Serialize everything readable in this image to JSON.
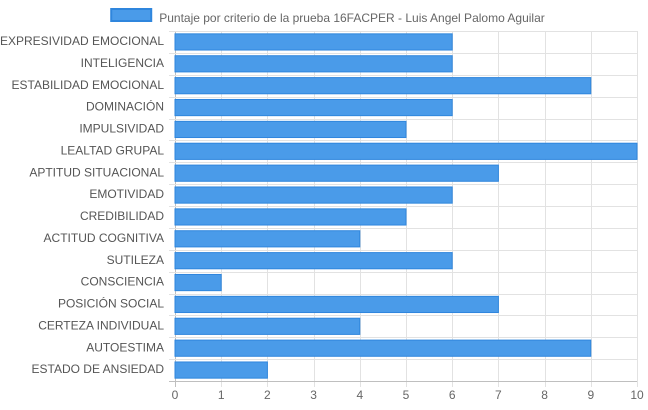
{
  "chart_data": {
    "type": "bar",
    "orientation": "horizontal",
    "title": "",
    "xlabel": "",
    "ylabel": "",
    "legend_position": "top",
    "grid": true,
    "xlim": [
      0,
      10
    ],
    "x_ticks": [
      0,
      1,
      2,
      3,
      4,
      5,
      6,
      7,
      8,
      9,
      10
    ],
    "categories": [
      "EXPRESIVIDAD EMOCIONAL",
      "INTELIGENCIA",
      "ESTABILIDAD EMOCIONAL",
      "DOMINACIÓN",
      "IMPULSIVIDAD",
      "LEALTAD GRUPAL",
      "APTITUD SITUACIONAL",
      "EMOTIVIDAD",
      "CREDIBILIDAD",
      "ACTITUD COGNITIVA",
      "SUTILEZA",
      "CONSCIENCIA",
      "POSICIÓN SOCIAL",
      "CERTEZA INDIVIDUAL",
      "AUTOESTIMA",
      "ESTADO DE ANSIEDAD"
    ],
    "series": [
      {
        "name": "Puntaje por criterio de la prueba 16FACPER - Luis Angel Palomo Aguilar",
        "values": [
          6,
          6,
          9,
          6,
          5,
          10,
          7,
          6,
          5,
          4,
          6,
          1,
          7,
          4,
          9,
          2
        ],
        "color": "#4a9be9",
        "border_color": "#2f86dd"
      }
    ]
  }
}
